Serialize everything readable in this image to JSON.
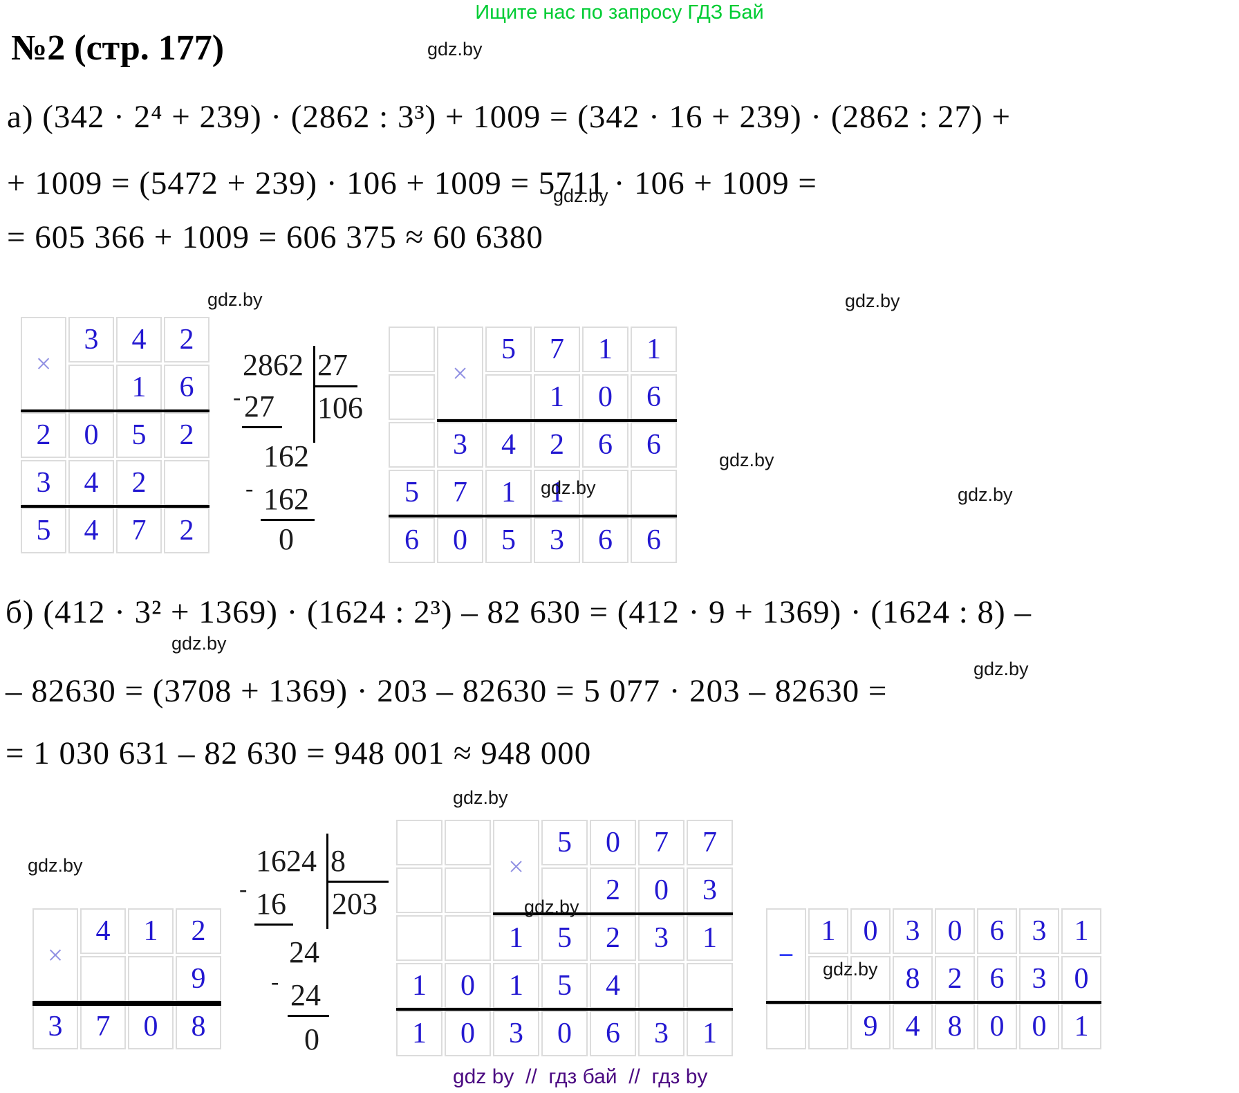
{
  "page": {
    "promo": "Ищите нас по запросу ГДЗ Бай",
    "watermark": "gdz.by",
    "footer": "gdz by  //  гдз бай  //  гдз by",
    "title": "№2 (стр. 177)"
  },
  "colors": {
    "promo_green": "#00CC33",
    "digit_blue": "#2318D1",
    "operator_blue": "#9191E3",
    "minus_blue": "#2F3BF5",
    "footer_purple": "#4B0A82"
  },
  "equations": {
    "a1": "а) (342 · 2⁴ + 239) · (2862 : 3³) + 1009 = (342 · 16 + 239) · (2862 : 27) +",
    "a2": "+ 1009 = (5472 + 239) · 106 + 1009 = 5711 · 106 + 1009 =",
    "a3": "= 605 366 + 1009 = 606 375 ≈ 60 6380",
    "b1": "б) (412 · 3² + 1369) · (1624 : 2³) – 82 630 = (412 · 9 + 1369) · (1624 : 8) –",
    "b2": "– 82630 = (3708 + 1369) · 203 – 82630 = 5 077 · 203 – 82630 =",
    "b3": "= 1 030 631 – 82 630 = 948 001 ≈ 948 000"
  },
  "symbols": {
    "minus": "-"
  },
  "grids": {
    "mult_342x16": {
      "cols": 4,
      "op": "×",
      "op_col": 0,
      "rows": [
        [
          "",
          "3",
          "4",
          "2"
        ],
        [
          "",
          "",
          "1",
          "6"
        ],
        [
          "2",
          "0",
          "5",
          "2"
        ],
        [
          "3",
          "4",
          "2",
          ""
        ],
        [
          "5",
          "4",
          "7",
          "2"
        ]
      ],
      "lines": [
        {
          "after": 1,
          "from": 0
        },
        {
          "after": 3,
          "from": 0
        }
      ]
    },
    "mult_5711x106": {
      "cols": 6,
      "op": "×",
      "op_col": 1,
      "rows": [
        [
          "",
          "",
          "5",
          "7",
          "1",
          "1"
        ],
        [
          "",
          "",
          "",
          "1",
          "0",
          "6"
        ],
        [
          "",
          "3",
          "4",
          "2",
          "6",
          "6"
        ],
        [
          "5",
          "7",
          "1",
          "1",
          "",
          ""
        ],
        [
          "6",
          "0",
          "5",
          "3",
          "6",
          "6"
        ]
      ],
      "lines": [
        {
          "after": 1,
          "from": 1
        },
        {
          "after": 3,
          "from": 0
        }
      ]
    },
    "mult_412x9": {
      "cols": 4,
      "op": "×",
      "op_col": 0,
      "rows": [
        [
          "",
          "4",
          "1",
          "2"
        ],
        [
          "",
          "",
          "",
          "9"
        ],
        [
          "3",
          "7",
          "0",
          "8"
        ]
      ],
      "lines": [
        {
          "after": 1,
          "from": 0,
          "thick": 7
        }
      ]
    },
    "mult_5077x203": {
      "cols": 7,
      "op": "×",
      "op_col": 2,
      "rows": [
        [
          "",
          "",
          "",
          "5",
          "0",
          "7",
          "7"
        ],
        [
          "",
          "",
          "",
          "",
          "2",
          "0",
          "3"
        ],
        [
          "",
          "",
          "1",
          "5",
          "2",
          "3",
          "1"
        ],
        [
          "1",
          "0",
          "1",
          "5",
          "4",
          "",
          ""
        ],
        [
          "1",
          "0",
          "3",
          "0",
          "6",
          "3",
          "1"
        ]
      ],
      "lines": [
        {
          "after": 1,
          "from": 2
        },
        {
          "after": 3,
          "from": 0
        }
      ]
    },
    "sub_1030631_82630": {
      "cols": 8,
      "op": "−",
      "op_col": 0,
      "rows": [
        [
          "",
          "1",
          "0",
          "3",
          "0",
          "6",
          "3",
          "1"
        ],
        [
          "",
          "",
          "",
          "8",
          "2",
          "6",
          "3",
          "0"
        ],
        [
          "",
          "",
          "9",
          "4",
          "8",
          "0",
          "0",
          "1"
        ]
      ],
      "lines": [
        {
          "after": 1,
          "from": 0
        }
      ]
    }
  },
  "divisions": {
    "a": {
      "dividend": "2862",
      "divisor": "27",
      "quotient": "106",
      "s1": "27",
      "s2": "162",
      "s3": "162",
      "s4": "0"
    },
    "b": {
      "dividend": "1624",
      "divisor": "8",
      "quotient": "203",
      "s1": "16",
      "s2": "24",
      "s3": "24",
      "s4": "0"
    }
  }
}
